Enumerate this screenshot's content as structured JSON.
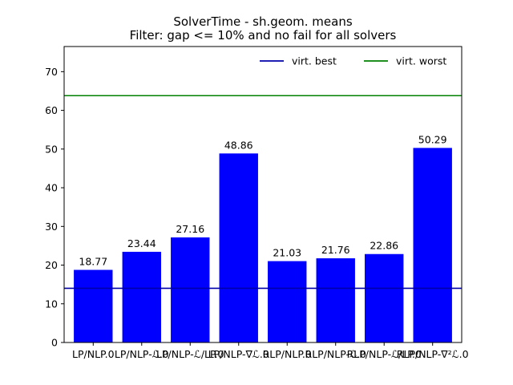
{
  "chart_data": {
    "type": "bar",
    "title": "SolverTime - sh.geom. means",
    "subtitle": "Filter: gap <= 10% and no fail for all solvers",
    "xlabel": "",
    "ylabel": "",
    "categories": [
      "LP/NLP.0",
      "LP/NLP-ℒ.0",
      "LP/NLP-ℒ/LP.0",
      "LP/NLP-∇ℒ.0",
      "RLP/NLP.0",
      "RLP/NLP-ℒ.0",
      "RLP/NLP-ℒ/LP.0",
      "RLP/NLP-∇²ℒ.0"
    ],
    "tick_labels_rendered": [
      "LP/NLP.0",
      "LP/NLP-ℒ.0",
      "LP/NLP-ℒ/LP.0",
      "LP/NLP-∇ℒ.0",
      "RLP/NLP.0",
      "RLP/NLP-ℒ.0",
      "RLP/NLP-ℒ/LP.0",
      "RLP/NLP-∇²ℒ.0"
    ],
    "values": [
      18.77,
      23.44,
      27.16,
      48.86,
      21.03,
      21.76,
      22.86,
      50.29
    ],
    "data_labels": [
      "18.77",
      "23.44",
      "27.16",
      "48.86",
      "21.03",
      "21.76",
      "22.86",
      "50.29"
    ],
    "bar_color": "#0000ff",
    "ylim": [
      0,
      76.5
    ],
    "yticks": [
      0,
      10,
      20,
      30,
      40,
      50,
      60,
      70
    ],
    "reference_lines": [
      {
        "name": "virt. best",
        "value": 14.0,
        "color": "#0000aa"
      },
      {
        "name": "virt. worst",
        "value": 63.8,
        "color": "#008000"
      }
    ],
    "legend": {
      "placement": "top-right",
      "entries": [
        "virt. best",
        "virt. worst"
      ]
    },
    "grid": false
  }
}
